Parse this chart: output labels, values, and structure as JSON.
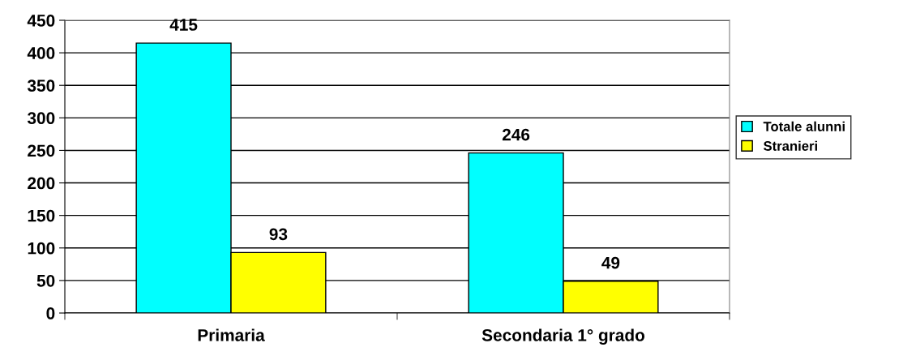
{
  "chart_data": {
    "type": "bar",
    "categories": [
      "Primaria",
      "Secondaria 1° grado"
    ],
    "series": [
      {
        "name": "Totale alunni",
        "color": "#00ffff",
        "values": [
          415,
          246
        ]
      },
      {
        "name": "Stranieri",
        "color": "#ffff00",
        "values": [
          93,
          49
        ]
      }
    ],
    "ylim": [
      0,
      450
    ],
    "yticks": [
      0,
      50,
      100,
      150,
      200,
      250,
      300,
      350,
      400,
      450
    ],
    "grid": "y",
    "legend": "right",
    "data_labels": true
  }
}
